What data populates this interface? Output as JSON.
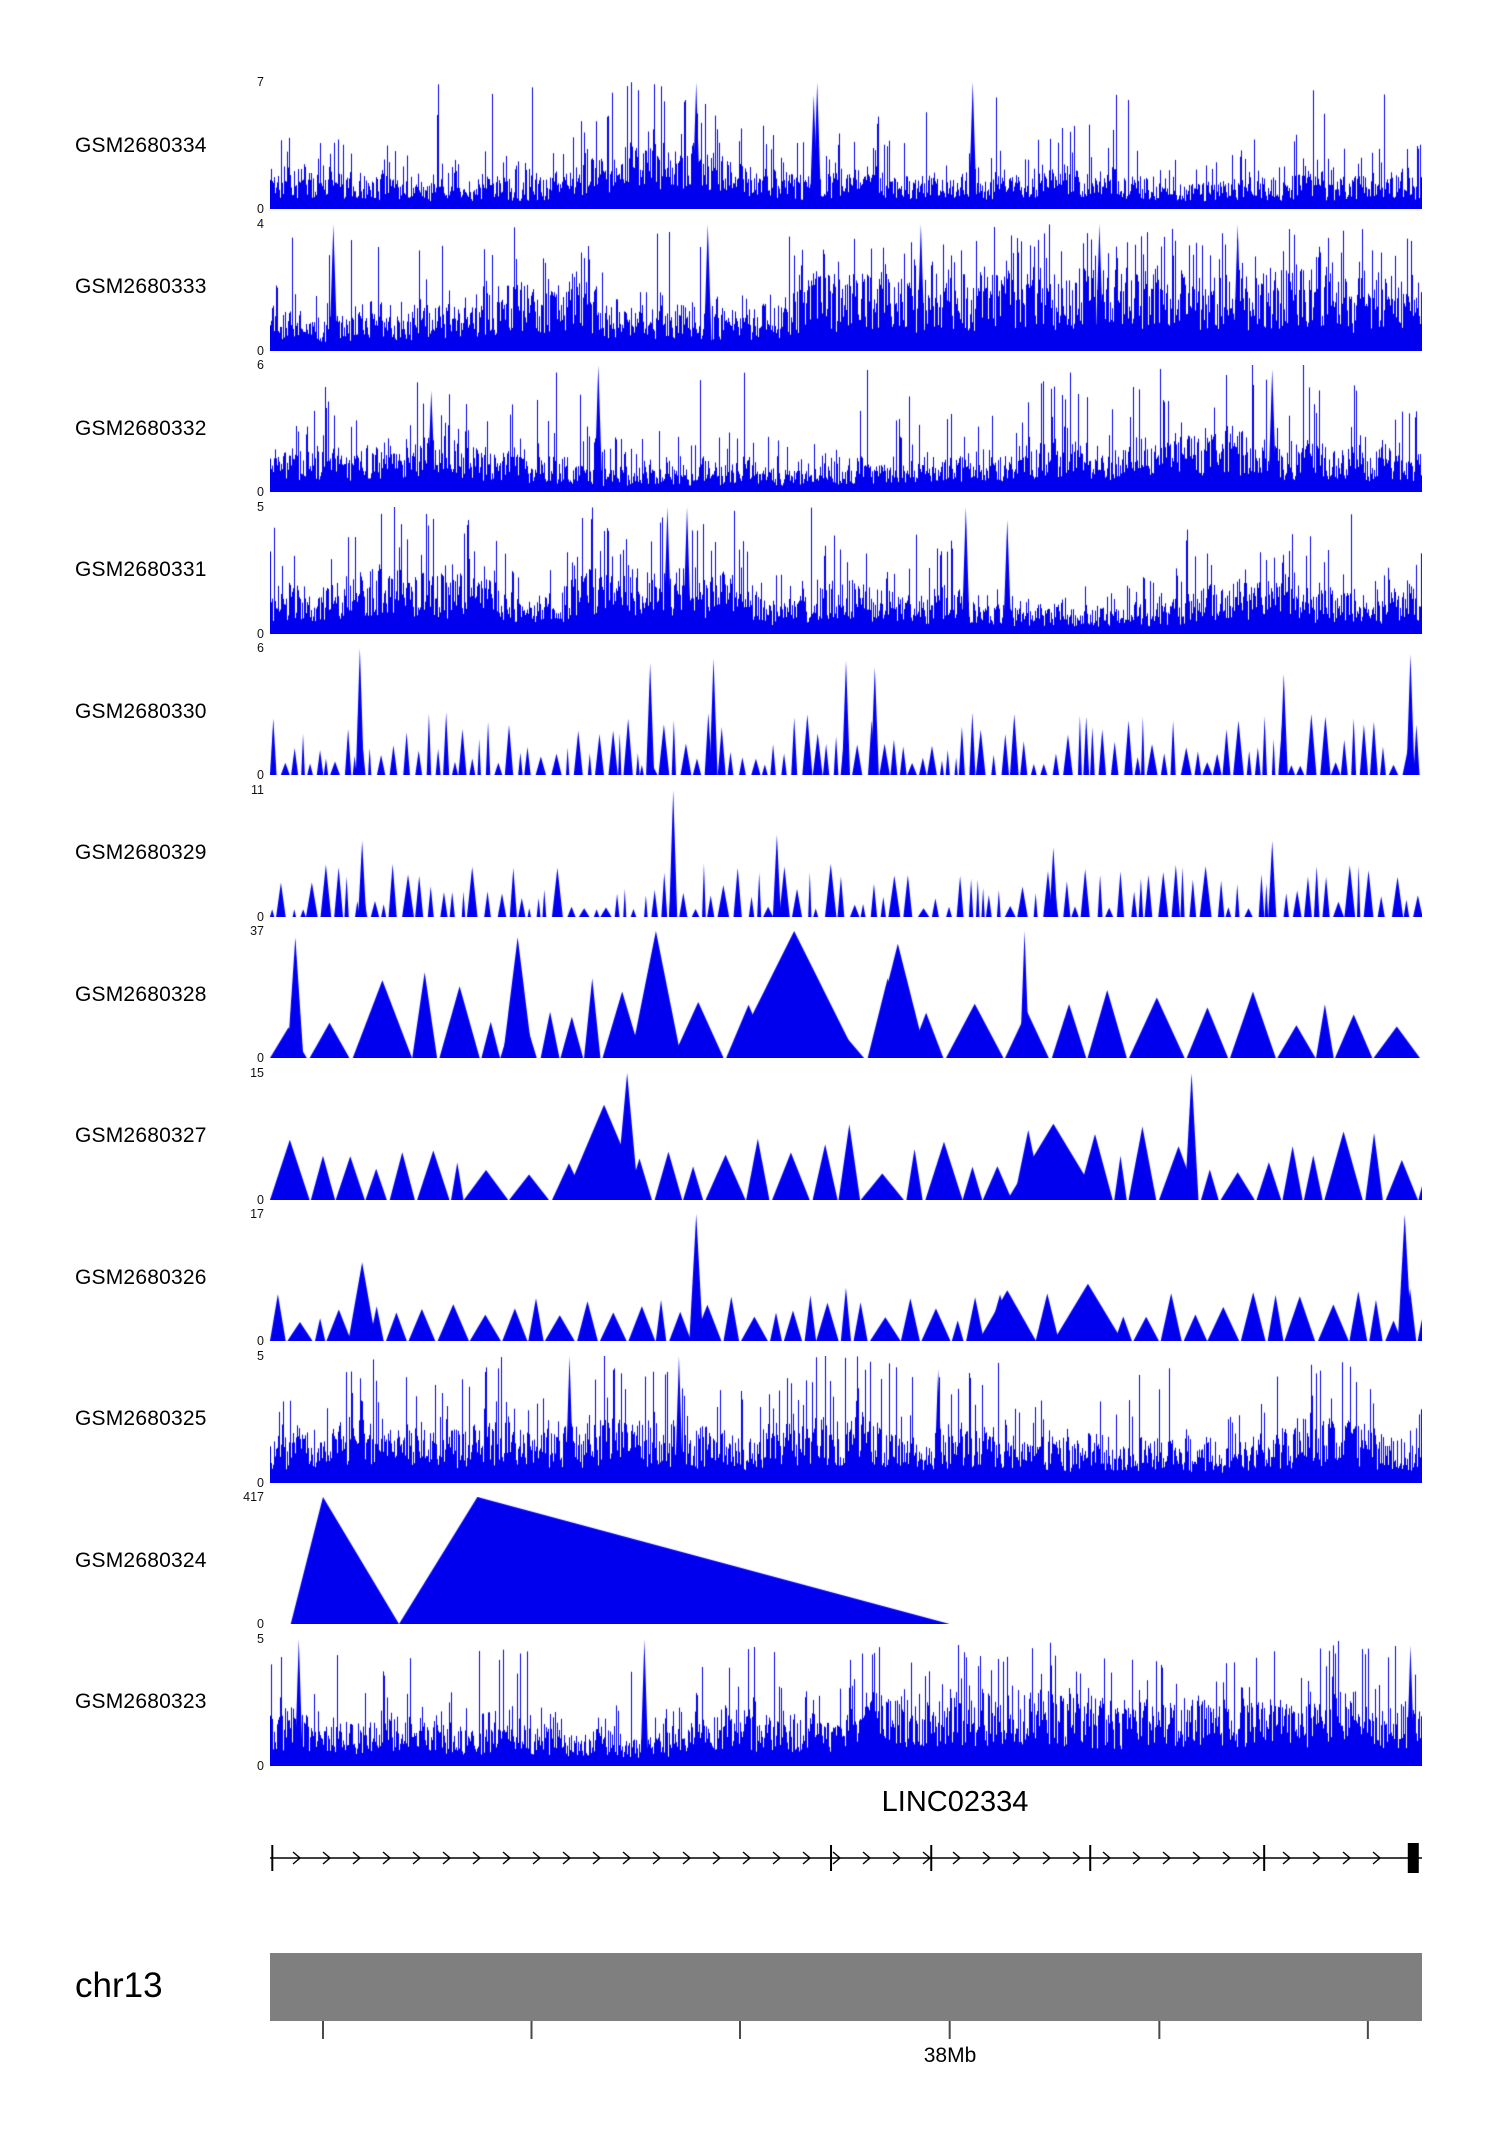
{
  "colors": {
    "signal": "#0000EE",
    "ideogram": "#7f7f7f",
    "gene_track": "#000000",
    "tick": "#4a4a4a",
    "text": "#000000"
  },
  "chart_data": {
    "type": "area",
    "title": "",
    "description": "Genome-browser coverage tracks for 12 GEO samples over chr13 near 38Mb at the LINC02334 locus; blue filled signal per track, y-axis from 0 to per-track maximum.",
    "legend": "none",
    "grid": false,
    "chromosome": {
      "name": "chr13",
      "tick_label": "38Mb",
      "tick_positions": [
        0.046,
        0.227,
        0.408,
        0.59,
        0.772,
        0.953
      ],
      "labeled_tick_index": 3
    },
    "gene": {
      "name": "LINC02334",
      "strand": "forward",
      "exon_tick_positions": [
        0.002,
        0.487,
        0.574,
        0.712,
        0.863
      ],
      "terminal_box_position": 0.992
    },
    "tracks": [
      {
        "name": "GSM2680334",
        "ymin": 0,
        "ymax": 7,
        "style": "dense",
        "seed": 11,
        "base": 0.26,
        "midProb": 0.16,
        "tallProb": 0.01,
        "forced": [
          {
            "x": 0.37
          },
          {
            "x": 0.475
          },
          {
            "x": 0.61
          },
          {
            "x": 0.472,
            "h": 0.9
          }
        ]
      },
      {
        "name": "GSM2680333",
        "ymin": 0,
        "ymax": 4,
        "style": "dense",
        "seed": 22,
        "base": 0.34,
        "midProb": 0.22,
        "tallProb": 0.035,
        "forced": [
          {
            "x": 0.055
          },
          {
            "x": 0.38
          },
          {
            "x": 0.565
          },
          {
            "x": 0.72
          },
          {
            "x": 0.84
          }
        ]
      },
      {
        "name": "GSM2680332",
        "ymin": 0,
        "ymax": 6,
        "style": "dense",
        "seed": 33,
        "base": 0.24,
        "midProb": 0.15,
        "tallProb": 0.01,
        "forced": [
          {
            "x": 0.285,
            "h": 1
          },
          {
            "x": 0.87,
            "h": 0.97
          },
          {
            "x": 0.14,
            "h": 0.8
          }
        ]
      },
      {
        "name": "GSM2680331",
        "ymin": 0,
        "ymax": 5,
        "style": "dense",
        "seed": 44,
        "base": 0.28,
        "midProb": 0.17,
        "tallProb": 0.012,
        "forced": [
          {
            "x": 0.345
          },
          {
            "x": 0.362
          },
          {
            "x": 0.604
          },
          {
            "x": 0.64,
            "h": 0.9
          }
        ]
      },
      {
        "name": "GSM2680330",
        "ymin": 0,
        "ymax": 6,
        "style": "triangles",
        "seed": 55,
        "minW": 3,
        "maxW": 11,
        "minH": 0.07,
        "maxH": 0.5,
        "gap": 6,
        "forced": [
          {
            "x": 0.078,
            "h": 1
          },
          {
            "x": 0.33,
            "h": 0.88
          },
          {
            "x": 0.385,
            "h": 0.92
          },
          {
            "x": 0.5,
            "h": 0.9
          },
          {
            "x": 0.525,
            "h": 0.85
          },
          {
            "x": 0.88,
            "h": 0.8
          },
          {
            "x": 0.99,
            "h": 0.95
          }
        ]
      },
      {
        "name": "GSM2680329",
        "ymin": 0,
        "ymax": 11,
        "style": "triangles",
        "seed": 66,
        "minW": 3,
        "maxW": 12,
        "minH": 0.06,
        "maxH": 0.42,
        "gap": 8,
        "forced": [
          {
            "x": 0.35,
            "h": 1
          },
          {
            "x": 0.44,
            "h": 0.65
          },
          {
            "x": 0.68,
            "h": 0.55
          },
          {
            "x": 0.87,
            "h": 0.6
          },
          {
            "x": 0.08,
            "h": 0.6
          }
        ]
      },
      {
        "name": "GSM2680328",
        "ymin": 0,
        "ymax": 37,
        "style": "triangles",
        "seed": 77,
        "minW": 16,
        "maxW": 65,
        "minH": 0.22,
        "maxH": 0.72,
        "gap": 4,
        "forced": [
          {
            "x": 0.022,
            "w": 0.007,
            "h": 0.95
          },
          {
            "x": 0.215,
            "w": 0.013,
            "h": 0.95
          },
          {
            "x": 0.335,
            "w": 0.022,
            "h": 1
          },
          {
            "x": 0.455,
            "w": 0.055,
            "h": 1
          },
          {
            "x": 0.545,
            "w": 0.025,
            "h": 0.9
          },
          {
            "x": 0.655,
            "w": 0.004,
            "h": 1
          }
        ]
      },
      {
        "name": "GSM2680327",
        "ymin": 0,
        "ymax": 15,
        "style": "triangles",
        "seed": 88,
        "minW": 12,
        "maxW": 45,
        "minH": 0.2,
        "maxH": 0.6,
        "gap": 3,
        "forced": [
          {
            "x": 0.31,
            "w": 0.01,
            "h": 1
          },
          {
            "x": 0.8,
            "w": 0.006,
            "h": 1
          },
          {
            "x": 0.29,
            "w": 0.035,
            "h": 0.75
          },
          {
            "x": 0.68,
            "w": 0.04,
            "h": 0.6
          }
        ]
      },
      {
        "name": "GSM2680326",
        "ymin": 0,
        "ymax": 17,
        "style": "triangles",
        "seed": 99,
        "minW": 10,
        "maxW": 32,
        "minH": 0.15,
        "maxH": 0.42,
        "gap": 3,
        "forced": [
          {
            "x": 0.08,
            "w": 0.012,
            "h": 0.62
          },
          {
            "x": 0.37,
            "w": 0.006,
            "h": 1
          },
          {
            "x": 0.985,
            "w": 0.006,
            "h": 1
          },
          {
            "x": 0.71,
            "w": 0.03,
            "h": 0.45
          },
          {
            "x": 0.64,
            "w": 0.025,
            "h": 0.4
          }
        ]
      },
      {
        "name": "GSM2680325",
        "ymin": 0,
        "ymax": 5,
        "style": "dense",
        "seed": 110,
        "base": 0.27,
        "midProb": 0.16,
        "tallProb": 0.012,
        "forced": [
          {
            "x": 0.26
          },
          {
            "x": 0.355
          },
          {
            "x": 0.58,
            "h": 0.9
          }
        ]
      },
      {
        "name": "GSM2680324",
        "ymin": 0,
        "ymax": 417,
        "style": "polygon",
        "seed": 120,
        "points": [
          [
            0.018,
            0
          ],
          [
            0.046,
            1
          ],
          [
            0.112,
            0
          ],
          [
            0.18,
            1
          ],
          [
            0.59,
            0
          ]
        ]
      },
      {
        "name": "GSM2680323",
        "ymin": 0,
        "ymax": 5,
        "style": "dense",
        "seed": 121,
        "base": 0.32,
        "midProb": 0.2,
        "tallProb": 0.02,
        "forced": [
          {
            "x": 0.025
          },
          {
            "x": 0.325
          },
          {
            "x": 0.99,
            "h": 0.95
          }
        ]
      }
    ]
  }
}
